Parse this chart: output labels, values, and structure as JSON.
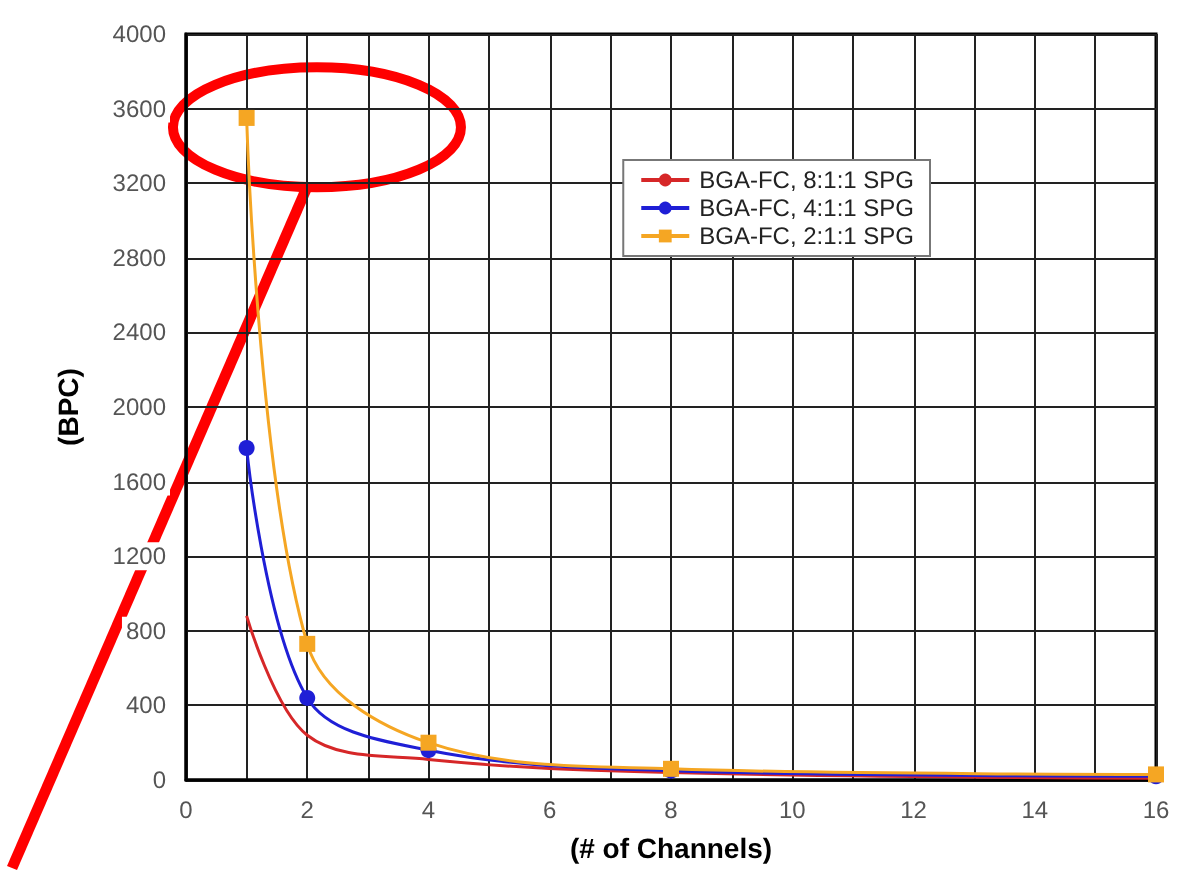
{
  "chart_data": {
    "type": "line",
    "xlabel": "(# of Channels)",
    "ylabel": "(BPC)",
    "xlim": [
      0,
      16
    ],
    "xticks": [
      0,
      {
        "value": 1,
        "label": null
      },
      2,
      {
        "value": 3,
        "label": null
      },
      4,
      {
        "value": 5,
        "label": null
      },
      6,
      {
        "value": 7,
        "label": null
      },
      8,
      {
        "value": 9,
        "label": null
      },
      10,
      {
        "value": 11,
        "label": null
      },
      12,
      {
        "value": 13,
        "label": null
      },
      14,
      {
        "value": 15,
        "label": null
      },
      16
    ],
    "ylim": [
      0,
      4000
    ],
    "yticks": [
      0,
      400,
      800,
      1200,
      1600,
      2000,
      2400,
      2800,
      3200,
      3600,
      4000
    ],
    "grid": true,
    "legend": "top right",
    "series": [
      {
        "name": "BGA-FC, 8:1:1 SPG",
        "color": "#d62728",
        "marker": "none",
        "x": [
          1,
          2,
          4,
          8,
          16
        ],
        "values": [
          880,
          240,
          110,
          40,
          10
        ]
      },
      {
        "name": "BGA-FC, 4:1:1 SPG",
        "color": "#1f1fd6",
        "marker": "circle",
        "x": [
          1,
          2,
          4,
          8,
          16
        ],
        "values": [
          1780,
          440,
          160,
          50,
          20
        ]
      },
      {
        "name": "BGA-FC, 2:1:1 SPG",
        "color": "#f5a623",
        "marker": "square",
        "x": [
          1,
          2,
          4,
          8,
          16
        ],
        "values": [
          3550,
          730,
          200,
          60,
          30
        ]
      }
    ]
  }
}
